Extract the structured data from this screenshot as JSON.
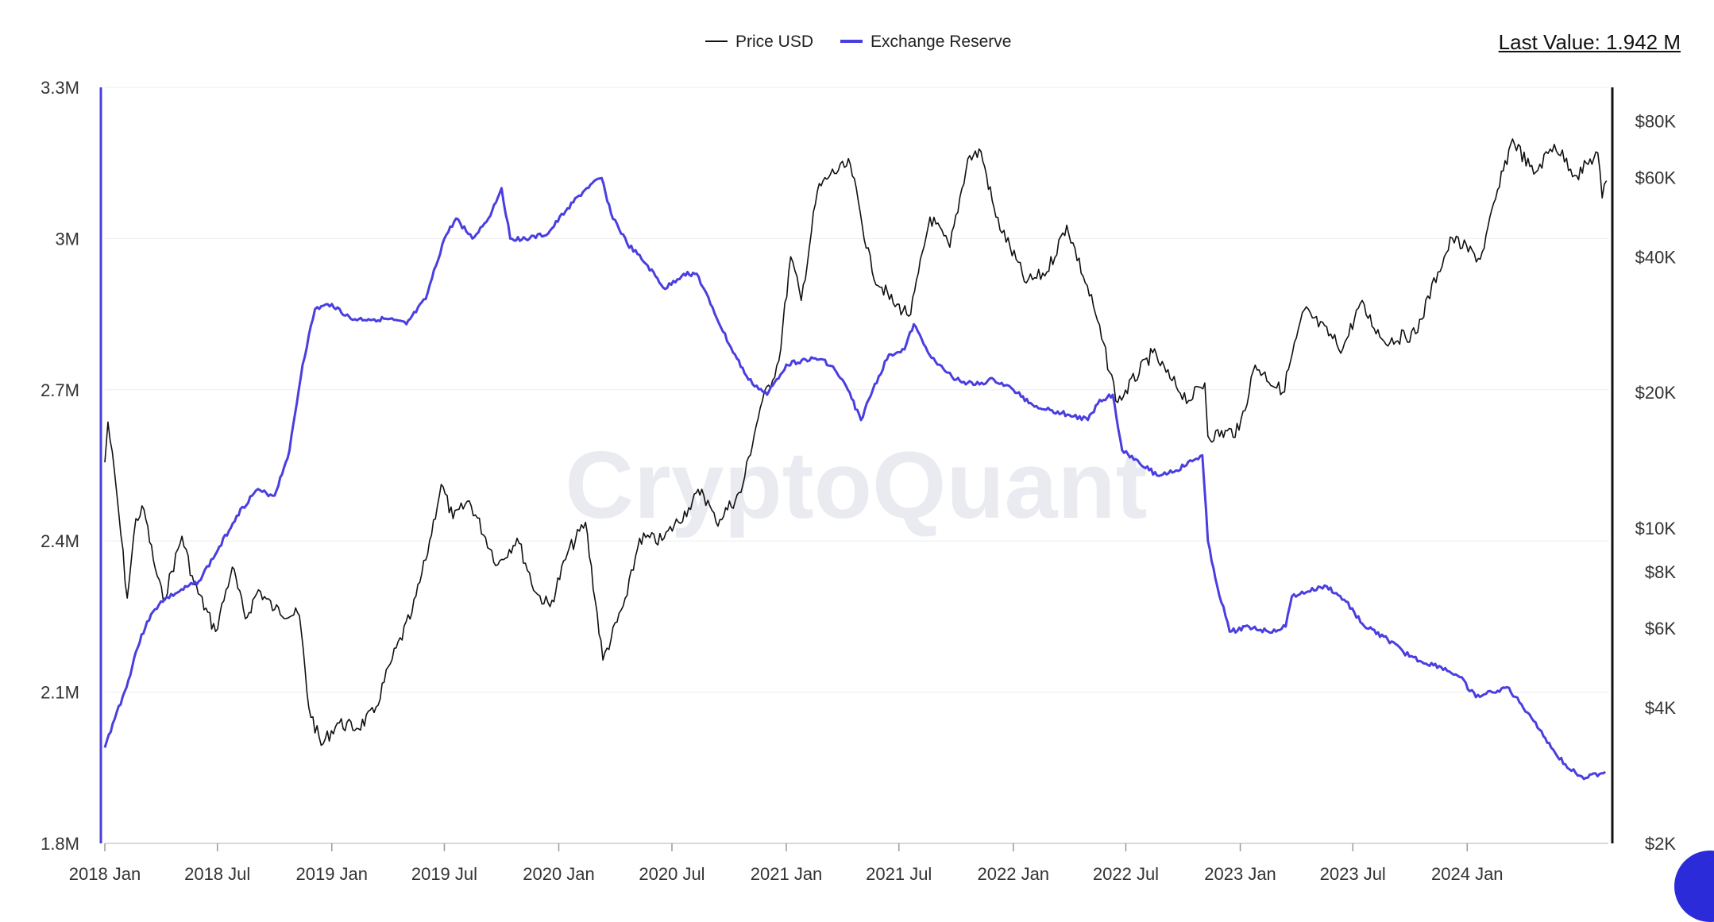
{
  "legend": {
    "items": [
      {
        "label": "Price USD",
        "color": "#111111"
      },
      {
        "label": "Exchange Reserve",
        "color": "#4a3ee0"
      }
    ]
  },
  "last_value": {
    "label": "Last Value: 1.942 M"
  },
  "watermark": "CryptoQuant",
  "colors": {
    "price": "#111111",
    "reserve": "#4a3ee0",
    "grid": "#eeeeee",
    "right_axis": "#111111",
    "left_axis": "#4a3ee0"
  },
  "chart_data": {
    "type": "line",
    "title": "",
    "x_ticks": [
      "2018 Jan",
      "2018 Jul",
      "2019 Jan",
      "2019 Jul",
      "2020 Jan",
      "2020 Jul",
      "2021 Jan",
      "2021 Jul",
      "2022 Jan",
      "2022 Jul",
      "2023 Jan",
      "2023 Jul",
      "2024 Jan"
    ],
    "x_range": [
      "2018-01-01",
      "2024-08-15"
    ],
    "y_left": {
      "label": "",
      "ticks": [
        "1.8M",
        "2.1M",
        "2.4M",
        "2.7M",
        "3M",
        "3.3M"
      ],
      "range": [
        1800000,
        3300000
      ]
    },
    "y_right": {
      "label": "",
      "scale": "log",
      "ticks": [
        "$2K",
        "$4K",
        "$6K",
        "$8K",
        "$10K",
        "$20K",
        "$40K",
        "$60K",
        "$80K"
      ],
      "tick_values": [
        2000,
        4000,
        6000,
        8000,
        10000,
        20000,
        40000,
        60000,
        80000
      ],
      "range": [
        2000,
        95000
      ]
    },
    "grid": true,
    "legend_position": "top-center",
    "series": [
      {
        "name": "Exchange Reserve",
        "axis": "left",
        "points": [
          [
            "2018-01-01",
            1990000
          ],
          [
            "2018-01-20",
            2060000
          ],
          [
            "2018-02-05",
            2110000
          ],
          [
            "2018-02-20",
            2180000
          ],
          [
            "2018-03-10",
            2240000
          ],
          [
            "2018-04-01",
            2280000
          ],
          [
            "2018-05-01",
            2300000
          ],
          [
            "2018-06-01",
            2320000
          ],
          [
            "2018-07-01",
            2380000
          ],
          [
            "2018-08-01",
            2450000
          ],
          [
            "2018-09-01",
            2500000
          ],
          [
            "2018-10-01",
            2490000
          ],
          [
            "2018-10-25",
            2580000
          ],
          [
            "2018-11-15",
            2750000
          ],
          [
            "2018-12-05",
            2860000
          ],
          [
            "2019-01-01",
            2870000
          ],
          [
            "2019-02-01",
            2840000
          ],
          [
            "2019-03-01",
            2840000
          ],
          [
            "2019-04-01",
            2840000
          ],
          [
            "2019-05-01",
            2830000
          ],
          [
            "2019-06-01",
            2880000
          ],
          [
            "2019-07-01",
            3000000
          ],
          [
            "2019-07-20",
            3040000
          ],
          [
            "2019-08-15",
            3000000
          ],
          [
            "2019-09-10",
            3040000
          ],
          [
            "2019-10-01",
            3100000
          ],
          [
            "2019-10-15",
            3000000
          ],
          [
            "2019-11-15",
            3000000
          ],
          [
            "2019-12-15",
            3010000
          ],
          [
            "2020-01-15",
            3060000
          ],
          [
            "2020-02-15",
            3100000
          ],
          [
            "2020-03-10",
            3120000
          ],
          [
            "2020-03-25",
            3050000
          ],
          [
            "2020-04-20",
            2990000
          ],
          [
            "2020-05-20",
            2950000
          ],
          [
            "2020-06-20",
            2900000
          ],
          [
            "2020-07-20",
            2930000
          ],
          [
            "2020-08-10",
            2930000
          ],
          [
            "2020-09-01",
            2870000
          ],
          [
            "2020-10-01",
            2790000
          ],
          [
            "2020-11-01",
            2720000
          ],
          [
            "2020-12-01",
            2690000
          ],
          [
            "2021-01-01",
            2750000
          ],
          [
            "2021-02-01",
            2760000
          ],
          [
            "2021-03-01",
            2760000
          ],
          [
            "2021-03-20",
            2740000
          ],
          [
            "2021-04-10",
            2700000
          ],
          [
            "2021-05-01",
            2640000
          ],
          [
            "2021-05-20",
            2700000
          ],
          [
            "2021-06-15",
            2770000
          ],
          [
            "2021-07-10",
            2780000
          ],
          [
            "2021-07-25",
            2830000
          ],
          [
            "2021-08-10",
            2790000
          ],
          [
            "2021-09-01",
            2750000
          ],
          [
            "2021-10-01",
            2720000
          ],
          [
            "2021-11-01",
            2710000
          ],
          [
            "2021-12-01",
            2720000
          ],
          [
            "2022-01-01",
            2700000
          ],
          [
            "2022-02-01",
            2670000
          ],
          [
            "2022-03-01",
            2660000
          ],
          [
            "2022-04-01",
            2650000
          ],
          [
            "2022-05-01",
            2640000
          ],
          [
            "2022-05-20",
            2680000
          ],
          [
            "2022-06-10",
            2690000
          ],
          [
            "2022-06-25",
            2580000
          ],
          [
            "2022-07-20",
            2560000
          ],
          [
            "2022-08-20",
            2530000
          ],
          [
            "2022-09-20",
            2540000
          ],
          [
            "2022-11-01",
            2570000
          ],
          [
            "2022-11-10",
            2400000
          ],
          [
            "2022-11-25",
            2310000
          ],
          [
            "2022-12-15",
            2220000
          ],
          [
            "2023-01-15",
            2230000
          ],
          [
            "2023-02-15",
            2220000
          ],
          [
            "2023-03-15",
            2230000
          ],
          [
            "2023-03-25",
            2290000
          ],
          [
            "2023-04-20",
            2300000
          ],
          [
            "2023-05-20",
            2310000
          ],
          [
            "2023-06-20",
            2280000
          ],
          [
            "2023-07-20",
            2230000
          ],
          [
            "2023-08-20",
            2210000
          ],
          [
            "2023-09-20",
            2180000
          ],
          [
            "2023-10-20",
            2160000
          ],
          [
            "2023-11-20",
            2150000
          ],
          [
            "2023-12-20",
            2130000
          ],
          [
            "2024-01-15",
            2090000
          ],
          [
            "2024-02-10",
            2100000
          ],
          [
            "2024-03-05",
            2110000
          ],
          [
            "2024-03-25",
            2080000
          ],
          [
            "2024-04-20",
            2040000
          ],
          [
            "2024-05-15",
            1990000
          ],
          [
            "2024-06-10",
            1950000
          ],
          [
            "2024-07-10",
            1930000
          ],
          [
            "2024-08-10",
            1942000
          ]
        ]
      },
      {
        "name": "Price USD",
        "axis": "right",
        "points": [
          [
            "2018-01-01",
            14000
          ],
          [
            "2018-01-06",
            17200
          ],
          [
            "2018-01-20",
            12000
          ],
          [
            "2018-02-06",
            7000
          ],
          [
            "2018-02-20",
            10500
          ],
          [
            "2018-03-05",
            11000
          ],
          [
            "2018-03-20",
            8500
          ],
          [
            "2018-04-05",
            6900
          ],
          [
            "2018-05-05",
            9600
          ],
          [
            "2018-05-25",
            7500
          ],
          [
            "2018-06-28",
            5900
          ],
          [
            "2018-07-25",
            8200
          ],
          [
            "2018-08-15",
            6300
          ],
          [
            "2018-09-05",
            7300
          ],
          [
            "2018-10-01",
            6600
          ],
          [
            "2018-11-10",
            6400
          ],
          [
            "2018-11-25",
            4000
          ],
          [
            "2018-12-15",
            3300
          ],
          [
            "2019-01-10",
            3700
          ],
          [
            "2019-02-10",
            3600
          ],
          [
            "2019-03-10",
            3900
          ],
          [
            "2019-04-05",
            5000
          ],
          [
            "2019-05-10",
            6500
          ],
          [
            "2019-06-01",
            8500
          ],
          [
            "2019-06-26",
            12500
          ],
          [
            "2019-07-15",
            10500
          ],
          [
            "2019-08-10",
            11500
          ],
          [
            "2019-09-25",
            8300
          ],
          [
            "2019-10-26",
            9500
          ],
          [
            "2019-11-25",
            7200
          ],
          [
            "2019-12-18",
            6700
          ],
          [
            "2020-01-15",
            8800
          ],
          [
            "2020-02-13",
            10300
          ],
          [
            "2020-03-12",
            5100
          ],
          [
            "2020-04-20",
            7100
          ],
          [
            "2020-05-10",
            9500
          ],
          [
            "2020-06-15",
            9400
          ],
          [
            "2020-07-28",
            11100
          ],
          [
            "2020-08-18",
            12200
          ],
          [
            "2020-09-10",
            10300
          ],
          [
            "2020-10-20",
            12000
          ],
          [
            "2020-11-20",
            18500
          ],
          [
            "2020-12-20",
            23500
          ],
          [
            "2021-01-08",
            40000
          ],
          [
            "2021-01-25",
            32000
          ],
          [
            "2021-02-20",
            56000
          ],
          [
            "2021-03-13",
            61000
          ],
          [
            "2021-04-14",
            64000
          ],
          [
            "2021-05-19",
            37000
          ],
          [
            "2021-06-22",
            31500
          ],
          [
            "2021-07-20",
            29800
          ],
          [
            "2021-08-20",
            49000
          ],
          [
            "2021-09-21",
            42000
          ],
          [
            "2021-10-20",
            66000
          ],
          [
            "2021-11-10",
            68500
          ],
          [
            "2021-12-04",
            49000
          ],
          [
            "2022-01-22",
            35000
          ],
          [
            "2022-02-24",
            37000
          ],
          [
            "2022-03-28",
            47000
          ],
          [
            "2022-05-10",
            31000
          ],
          [
            "2022-06-18",
            19000
          ],
          [
            "2022-08-13",
            24500
          ],
          [
            "2022-09-10",
            21500
          ],
          [
            "2022-10-10",
            19200
          ],
          [
            "2022-11-05",
            21000
          ],
          [
            "2022-11-10",
            16000
          ],
          [
            "2022-12-30",
            16500
          ],
          [
            "2023-01-25",
            23000
          ],
          [
            "2023-03-10",
            20000
          ],
          [
            "2023-04-14",
            30500
          ],
          [
            "2023-06-15",
            25000
          ],
          [
            "2023-07-13",
            31500
          ],
          [
            "2023-08-20",
            26000
          ],
          [
            "2023-10-10",
            27000
          ],
          [
            "2023-11-15",
            37000
          ],
          [
            "2023-12-08",
            44000
          ],
          [
            "2024-01-22",
            39500
          ],
          [
            "2024-02-28",
            62000
          ],
          [
            "2024-03-14",
            73000
          ],
          [
            "2024-04-17",
            61000
          ],
          [
            "2024-05-20",
            71000
          ],
          [
            "2024-06-25",
            60500
          ],
          [
            "2024-07-29",
            68000
          ],
          [
            "2024-08-05",
            54000
          ],
          [
            "2024-08-12",
            59000
          ]
        ]
      }
    ]
  }
}
